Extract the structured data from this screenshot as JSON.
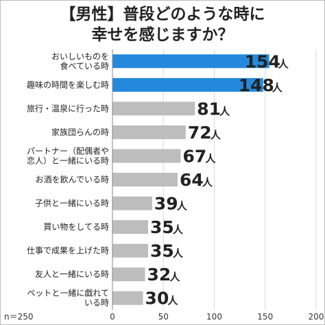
{
  "title": {
    "line1": "【男性】普段どのような時に",
    "line2": "幸せを感じますか？"
  },
  "sample_note": "n＝250",
  "unit": "人",
  "colors": {
    "highlight": "#2489dc",
    "normal": "#bdbdbd",
    "grid": "#d8d8d8",
    "axis": "#888888"
  },
  "chart_data": {
    "type": "bar",
    "orientation": "horizontal",
    "title": "【男性】普段どのような時に幸せを感じますか？",
    "categories": [
      [
        "おいしいものを",
        "食べている時"
      ],
      [
        "趣味の時間を楽しむ時"
      ],
      [
        "旅行・温泉に行った時"
      ],
      [
        "家族団らんの時"
      ],
      [
        "パートナー（配偶者や",
        "恋人）と一緒にいる時"
      ],
      [
        "お酒を飲んでいる時"
      ],
      [
        "子供と一緒にいる時"
      ],
      [
        "買い物をしてる時"
      ],
      [
        "仕事で成果を上げた時"
      ],
      [
        "友人と一緒にいる時"
      ],
      [
        "ペットと一緒に戯れて",
        "いる時"
      ]
    ],
    "values": [
      154,
      148,
      81,
      72,
      67,
      64,
      39,
      35,
      35,
      32,
      30
    ],
    "highlight_count": 2,
    "xlim": [
      0,
      200
    ],
    "xticks": [
      0,
      50,
      100,
      150,
      200
    ],
    "grid": true
  }
}
